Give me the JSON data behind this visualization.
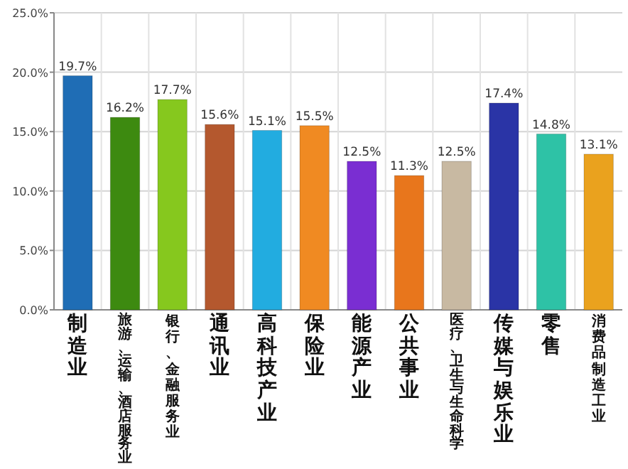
{
  "chart_data": {
    "type": "bar",
    "categories": [
      "制造业",
      "旅游、运输、酒店服务业",
      "银行、金融服务业",
      "通讯业",
      "高科技产业",
      "保险业",
      "能源产业",
      "公共事业",
      "医疗、卫生与生命科学",
      "传媒与娱乐业",
      "零售",
      "消费品制造工业"
    ],
    "values": [
      19.7,
      16.2,
      17.7,
      15.6,
      15.1,
      15.5,
      12.5,
      11.3,
      12.5,
      17.4,
      14.8,
      13.1
    ],
    "value_labels": [
      "19.7%",
      "16.2%",
      "17.7%",
      "15.6%",
      "15.1%",
      "15.5%",
      "12.5%",
      "11.3%",
      "12.5%",
      "17.4%",
      "14.8%",
      "13.1%"
    ],
    "colors": [
      "#1f6db5",
      "#3d8a10",
      "#86c81e",
      "#b4582e",
      "#22ace0",
      "#f08a22",
      "#7a2ed2",
      "#e8761c",
      "#c8b9a2",
      "#2a34a6",
      "#2ec2a6",
      "#eaa21e"
    ],
    "ylim": [
      0,
      25
    ],
    "yticks": [
      {
        "value": 0,
        "label": "0.0%"
      },
      {
        "value": 5,
        "label": "5.0%"
      },
      {
        "value": 10,
        "label": "10.0%"
      },
      {
        "value": 15,
        "label": "15.0%"
      },
      {
        "value": 20,
        "label": "20.0%"
      },
      {
        "value": 25,
        "label": "25.0%"
      }
    ],
    "grid": true
  }
}
